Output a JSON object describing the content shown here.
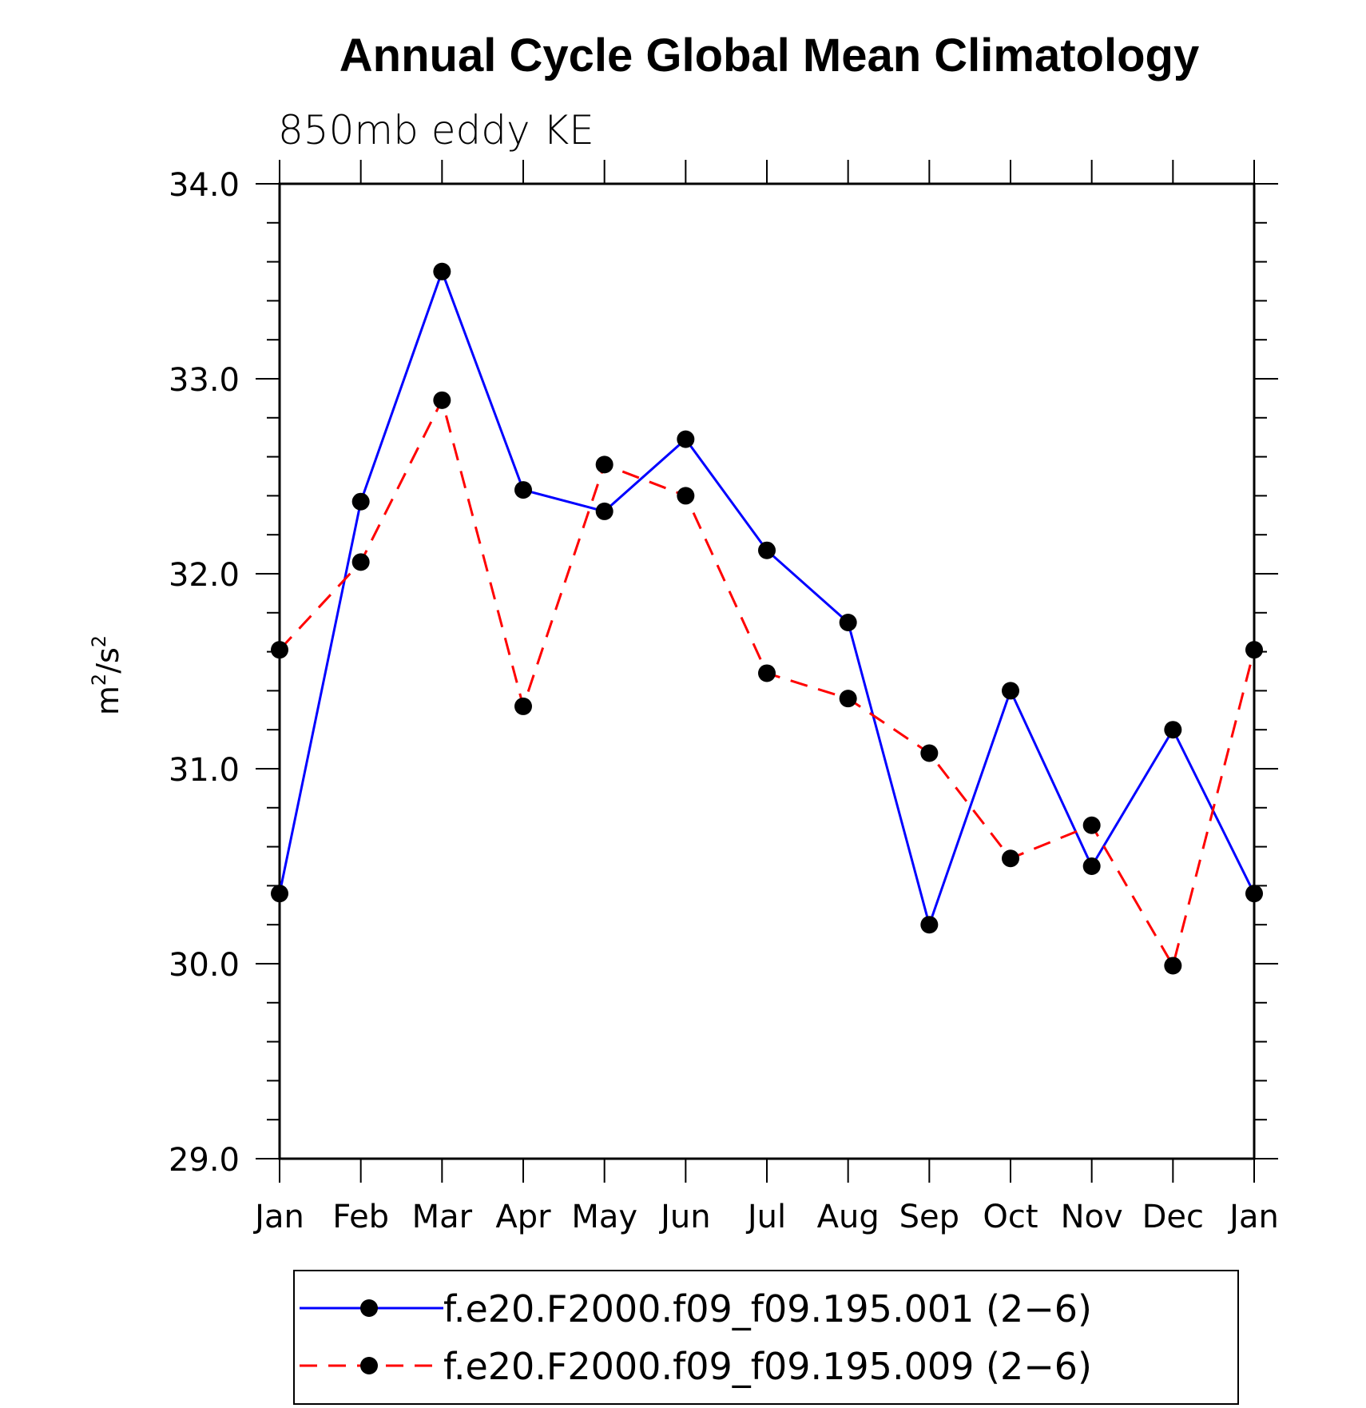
{
  "chart_data": {
    "type": "line",
    "title": "Annual Cycle Global Mean Climatology",
    "subtitle": "850mb eddy KE",
    "ylabel_base": "m",
    "ylabel_mid": "/s",
    "ylabel_exp": "2",
    "ylabel": "m²/s²",
    "xlabel": "",
    "categories": [
      "Jan",
      "Feb",
      "Mar",
      "Apr",
      "May",
      "Jun",
      "Jul",
      "Aug",
      "Sep",
      "Oct",
      "Nov",
      "Dec",
      "Jan"
    ],
    "ylim": [
      29.0,
      34.0
    ],
    "y_ticks": [
      "29.0",
      "30.0",
      "31.0",
      "32.0",
      "33.0",
      "34.0"
    ],
    "y_tick_values": [
      29.0,
      30.0,
      31.0,
      32.0,
      33.0,
      34.0
    ],
    "y_minor_step": 0.2,
    "grid": false,
    "legend_position": "bottom",
    "series": [
      {
        "name": "f.e20.F2000.f09_f09.195.001 (2−6)",
        "color": "#0000ff",
        "dash": "solid",
        "marker": "filled-circle",
        "values": [
          30.36,
          32.37,
          33.55,
          32.43,
          32.32,
          32.69,
          32.12,
          31.75,
          30.2,
          31.4,
          30.5,
          31.2,
          30.36
        ]
      },
      {
        "name": "f.e20.F2000.f09_f09.195.009 (2−6)",
        "color": "#ff0000",
        "dash": "dashed",
        "marker": "filled-circle",
        "values": [
          31.61,
          32.06,
          32.89,
          31.32,
          32.56,
          32.4,
          31.49,
          31.36,
          31.08,
          30.54,
          30.71,
          29.99,
          31.61
        ]
      }
    ]
  }
}
